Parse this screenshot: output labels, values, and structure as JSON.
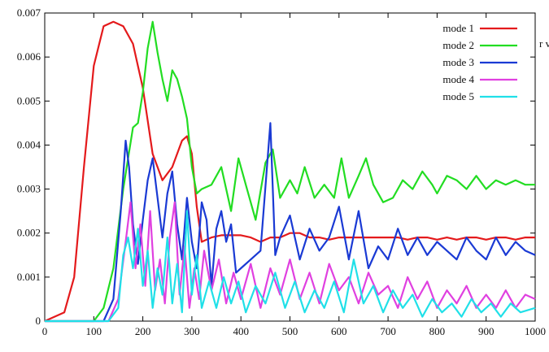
{
  "chart_data": {
    "type": "line",
    "xlim": [
      0,
      1000
    ],
    "ylim": [
      0,
      0.007
    ],
    "x_ticks": [
      "0",
      "100",
      "200",
      "300",
      "400",
      "500",
      "600",
      "700",
      "800",
      "900",
      "1000"
    ],
    "y_ticks": [
      "0",
      "0.001",
      "0.002",
      "0.003",
      "0.004",
      "0.005",
      "0.006",
      "0.007"
    ],
    "grid": false,
    "legend_position": "top-right",
    "series": [
      {
        "name": "mode 1",
        "color": "#e41a1c",
        "x": [
          0,
          40,
          60,
          80,
          100,
          120,
          140,
          160,
          180,
          200,
          220,
          240,
          260,
          280,
          290,
          300,
          310,
          320,
          340,
          360,
          380,
          400,
          420,
          440,
          460,
          480,
          500,
          520,
          540,
          560,
          580,
          600,
          620,
          640,
          660,
          680,
          700,
          720,
          740,
          760,
          780,
          800,
          820,
          840,
          860,
          880,
          900,
          920,
          940,
          960,
          980,
          1000
        ],
        "y": [
          0,
          0.0002,
          0.001,
          0.0035,
          0.0058,
          0.0067,
          0.0068,
          0.0067,
          0.0063,
          0.0053,
          0.0038,
          0.0032,
          0.0035,
          0.0041,
          0.0042,
          0.0038,
          0.0026,
          0.0018,
          0.0019,
          0.00195,
          0.00195,
          0.00195,
          0.0019,
          0.0018,
          0.0019,
          0.0019,
          0.002,
          0.002,
          0.0019,
          0.0019,
          0.00185,
          0.0019,
          0.0019,
          0.0019,
          0.0019,
          0.0019,
          0.0019,
          0.0019,
          0.00185,
          0.0019,
          0.0019,
          0.00185,
          0.0019,
          0.00185,
          0.0019,
          0.0019,
          0.00185,
          0.0019,
          0.0019,
          0.00185,
          0.0019,
          0.0019
        ]
      },
      {
        "name": "mode 2",
        "color": "#22dd22",
        "x": [
          0,
          100,
          120,
          140,
          160,
          180,
          190,
          200,
          210,
          220,
          230,
          240,
          250,
          260,
          270,
          280,
          290,
          300,
          310,
          320,
          340,
          360,
          380,
          395,
          410,
          430,
          450,
          465,
          480,
          500,
          515,
          530,
          550,
          570,
          590,
          605,
          620,
          640,
          655,
          670,
          690,
          710,
          730,
          750,
          770,
          790,
          800,
          820,
          840,
          860,
          880,
          900,
          920,
          940,
          960,
          980,
          1000
        ],
        "y": [
          0,
          0,
          0.0003,
          0.0012,
          0.003,
          0.0044,
          0.0045,
          0.0052,
          0.0062,
          0.0068,
          0.0061,
          0.0055,
          0.005,
          0.0057,
          0.0055,
          0.0051,
          0.0046,
          0.0035,
          0.0029,
          0.003,
          0.0031,
          0.0035,
          0.0025,
          0.0037,
          0.0031,
          0.0023,
          0.0036,
          0.0039,
          0.0028,
          0.0032,
          0.0029,
          0.0035,
          0.0028,
          0.0031,
          0.0028,
          0.0037,
          0.0028,
          0.0033,
          0.0037,
          0.0031,
          0.0027,
          0.0028,
          0.0032,
          0.003,
          0.0034,
          0.0031,
          0.0029,
          0.0033,
          0.0032,
          0.003,
          0.0033,
          0.003,
          0.0032,
          0.0031,
          0.0032,
          0.0031,
          0.0031
        ]
      },
      {
        "name": "mode 3",
        "color": "#1a3ad4",
        "x": [
          0,
          120,
          140,
          155,
          165,
          172,
          180,
          190,
          200,
          210,
          220,
          230,
          240,
          250,
          260,
          270,
          280,
          290,
          300,
          310,
          320,
          330,
          340,
          350,
          360,
          370,
          380,
          390,
          400,
          420,
          440,
          460,
          470,
          480,
          500,
          520,
          540,
          560,
          580,
          600,
          620,
          640,
          660,
          680,
          700,
          720,
          740,
          760,
          780,
          800,
          820,
          840,
          860,
          880,
          900,
          920,
          940,
          960,
          980,
          1000
        ],
        "y": [
          0,
          0,
          0.0005,
          0.0025,
          0.0041,
          0.0035,
          0.0022,
          0.0013,
          0.0023,
          0.0032,
          0.0037,
          0.0028,
          0.0019,
          0.0029,
          0.0034,
          0.0022,
          0.0014,
          0.0028,
          0.0018,
          0.0012,
          0.0027,
          0.0023,
          0.0008,
          0.0021,
          0.0025,
          0.0018,
          0.0022,
          0.0011,
          0.0012,
          0.0014,
          0.0016,
          0.0045,
          0.0015,
          0.0019,
          0.0024,
          0.0014,
          0.0021,
          0.0016,
          0.0019,
          0.0026,
          0.0014,
          0.0025,
          0.0012,
          0.0017,
          0.0014,
          0.0021,
          0.0015,
          0.0019,
          0.0015,
          0.0018,
          0.0016,
          0.0014,
          0.0019,
          0.0016,
          0.0014,
          0.0019,
          0.0015,
          0.0018,
          0.0016,
          0.0015
        ]
      },
      {
        "name": "mode 4",
        "color": "#e040e0",
        "x": [
          0,
          130,
          150,
          165,
          175,
          185,
          195,
          205,
          215,
          225,
          235,
          245,
          255,
          265,
          275,
          285,
          295,
          305,
          315,
          325,
          340,
          355,
          370,
          385,
          400,
          420,
          440,
          460,
          480,
          500,
          520,
          540,
          560,
          580,
          600,
          620,
          640,
          660,
          680,
          700,
          720,
          740,
          760,
          780,
          800,
          820,
          840,
          860,
          880,
          900,
          920,
          940,
          960,
          980,
          1000
        ],
        "y": [
          0,
          0,
          0.0005,
          0.0018,
          0.0027,
          0.0012,
          0.0022,
          0.0008,
          0.0025,
          0.0007,
          0.0014,
          0.0004,
          0.0019,
          0.0027,
          0.0006,
          0.0017,
          0.0003,
          0.0012,
          0.0005,
          0.0016,
          0.0007,
          0.0014,
          0.0004,
          0.0011,
          0.0005,
          0.0013,
          0.0003,
          0.0012,
          0.0006,
          0.0014,
          0.0005,
          0.0011,
          0.0004,
          0.0013,
          0.0007,
          0.001,
          0.0004,
          0.0011,
          0.0006,
          0.0008,
          0.0003,
          0.001,
          0.0005,
          0.0009,
          0.0003,
          0.0007,
          0.0004,
          0.0008,
          0.0003,
          0.0006,
          0.0003,
          0.0007,
          0.0003,
          0.0006,
          0.0005
        ]
      },
      {
        "name": "mode 5",
        "color": "#20e0e8",
        "x": [
          0,
          130,
          150,
          160,
          170,
          180,
          190,
          200,
          210,
          220,
          230,
          240,
          250,
          260,
          270,
          280,
          290,
          300,
          310,
          320,
          335,
          350,
          365,
          380,
          395,
          410,
          430,
          450,
          470,
          490,
          510,
          530,
          550,
          570,
          590,
          610,
          630,
          650,
          670,
          690,
          710,
          730,
          750,
          770,
          790,
          810,
          830,
          850,
          870,
          890,
          910,
          930,
          950,
          970,
          1000
        ],
        "y": [
          0,
          0,
          0.0003,
          0.0015,
          0.0019,
          0.0012,
          0.0021,
          0.0008,
          0.0016,
          0.0003,
          0.0012,
          0.0006,
          0.0019,
          0.0004,
          0.0013,
          0.0002,
          0.0025,
          0.0006,
          0.0015,
          0.0003,
          0.0009,
          0.0003,
          0.001,
          0.0004,
          0.0009,
          0.0002,
          0.0008,
          0.0004,
          0.0011,
          0.0003,
          0.0009,
          0.0002,
          0.0007,
          0.0003,
          0.0009,
          0.0002,
          0.0014,
          0.0004,
          0.0008,
          0.0002,
          0.0007,
          0.0003,
          0.0006,
          0.0001,
          0.0005,
          0.0002,
          0.0004,
          0.0001,
          0.0005,
          0.0002,
          0.0004,
          0.0001,
          0.0004,
          0.0002,
          0.0003
        ]
      }
    ]
  },
  "clipped_label": "r v"
}
